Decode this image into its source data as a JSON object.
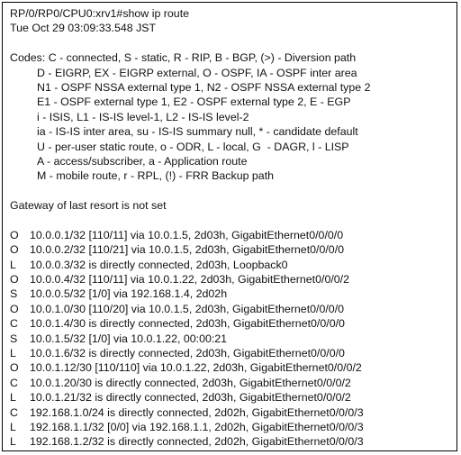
{
  "header": [
    "RP/0/RP0/CPU0:xrv1#show ip route",
    "Tue Oct 29 03:09:33.548 JST"
  ],
  "codes": [
    "Codes: C - connected, S - static, R - RIP, B - BGP, (>) - Diversion path",
    "D - EIGRP, EX - EIGRP external, O - OSPF, IA - OSPF inter area",
    "N1 - OSPF NSSA external type 1, N2 - OSPF NSSA external type 2",
    "E1 - OSPF external type 1, E2 - OSPF external type 2, E - EGP",
    "i - ISIS, L1 - IS-IS level-1, L2 - IS-IS level-2",
    "ia - IS-IS inter area, su - IS-IS summary null, * - candidate default",
    "U - per-user static route, o - ODR, L - local, G  - DAGR, l - LISP",
    "A - access/subscriber, a - Application route",
    "M - mobile route, r - RPL, (!) - FRR Backup path"
  ],
  "gateway": "Gateway of last resort is not set",
  "routes": [
    {
      "code": "O",
      "text": "10.0.0.1/32 [110/11] via 10.0.1.5, 2d03h, GigabitEthernet0/0/0/0"
    },
    {
      "code": "O",
      "text": "10.0.0.2/32 [110/21] via 10.0.1.5, 2d03h, GigabitEthernet0/0/0/0"
    },
    {
      "code": "L",
      "text": "10.0.0.3/32 is directly connected, 2d03h, Loopback0"
    },
    {
      "code": "O",
      "text": "10.0.0.4/32 [110/11] via 10.0.1.22, 2d03h, GigabitEthernet0/0/0/2"
    },
    {
      "code": "S",
      "text": "10.0.0.5/32 [1/0] via 192.168.1.4, 2d02h"
    },
    {
      "code": "O",
      "text": "10.0.1.0/30 [110/20] via 10.0.1.5, 2d03h, GigabitEthernet0/0/0/0"
    },
    {
      "code": "C",
      "text": "10.0.1.4/30 is directly connected, 2d03h, GigabitEthernet0/0/0/0"
    },
    {
      "code": "S",
      "text": "10.0.1.5/32 [1/0] via 10.0.1.22, 00:00:21"
    },
    {
      "code": "L",
      "text": "10.0.1.6/32 is directly connected, 2d03h, GigabitEthernet0/0/0/0"
    },
    {
      "code": "O",
      "text": "10.0.1.12/30 [110/110] via 10.0.1.22, 2d03h, GigabitEthernet0/0/0/2"
    },
    {
      "code": "C",
      "text": "10.0.1.20/30 is directly connected, 2d03h, GigabitEthernet0/0/0/2"
    },
    {
      "code": "L",
      "text": "10.0.1.21/32 is directly connected, 2d03h, GigabitEthernet0/0/0/2"
    },
    {
      "code": "C",
      "text": "192.168.1.0/24 is directly connected, 2d02h, GigabitEthernet0/0/0/3"
    },
    {
      "code": "L",
      "text": "192.168.1.1/32 [0/0] via 192.168.1.1, 2d02h, GigabitEthernet0/0/0/3"
    },
    {
      "code": "L",
      "text": "192.168.1.2/32 is directly connected, 2d02h, GigabitEthernet0/0/0/3"
    }
  ]
}
